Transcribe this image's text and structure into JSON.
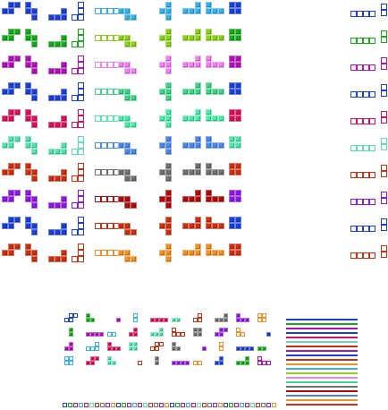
{
  "sheet": {
    "title": "",
    "background": "#ffffff",
    "palettes": [
      {
        "name": "blue",
        "a": "#1a3fd6",
        "b": "#3bb0e6"
      },
      {
        "name": "green",
        "a": "#18a81c",
        "b": "#8ccf1e"
      },
      {
        "name": "magenta",
        "a": "#b012b8",
        "b": "#ee82ee"
      },
      {
        "name": "navy",
        "a": "#1a3fd6",
        "b": "#41d38a"
      },
      {
        "name": "crimson",
        "a": "#d6125a",
        "b": "#4ee8a8"
      },
      {
        "name": "mint",
        "a": "#58e0b0",
        "b": "#4a86e8"
      },
      {
        "name": "rust",
        "a": "#cc3010",
        "b": "#707070"
      },
      {
        "name": "purple",
        "a": "#8e18e0",
        "b": "#b00a0a"
      },
      {
        "name": "blue2",
        "a": "#1a3fd6",
        "b": "#cc3010"
      },
      {
        "name": "orange",
        "a": "#cc3010",
        "b": "#f09028"
      }
    ],
    "stripes": [
      "#1a3fd6",
      "#18a81c",
      "#b012b8",
      "#1a3fd6",
      "#d6125a",
      "#58e0b0",
      "#cc3010",
      "#8e18e0",
      "#1a3fd6",
      "#cc3010",
      "#f09028",
      "#3bb0e6",
      "#8ccf1e",
      "#ee82ee",
      "#41d38a",
      "#707070",
      "#b00a0a",
      "#4a86e8",
      "#f09028",
      "#cc3010"
    ],
    "small_palette": [
      "#1a3fd6",
      "#18a81c",
      "#b012b8",
      "#3bb0e6",
      "#d6125a",
      "#58e0b0",
      "#cc3010",
      "#707070",
      "#8e18e0",
      "#f09028"
    ]
  }
}
